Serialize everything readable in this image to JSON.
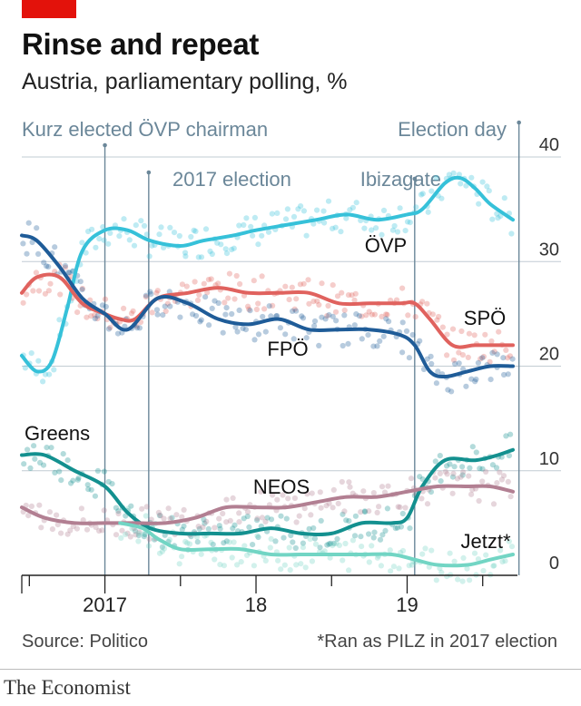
{
  "header": {
    "title": "Rinse and repeat",
    "subtitle": "Austria, parliamentary polling, %"
  },
  "footer": {
    "source": "Source: Politico",
    "footnote": "*Ran as PILZ in 2017 election",
    "brand": "The Economist"
  },
  "colors": {
    "accent": "#e3120b",
    "OVP": "#36c1d9",
    "SPO": "#e0625e",
    "FPO": "#1f5c98",
    "Greens": "#13908f",
    "NEOS": "#b27f92",
    "Jetzt": "#72d5c4",
    "event_line": "#6b8799"
  },
  "chart_data": {
    "type": "line",
    "x_axis": {
      "range": [
        2016.45,
        2019.73
      ],
      "tick_labels": [
        {
          "label": "2017",
          "x": 2017.0
        },
        {
          "label": "18",
          "x": 2018.0
        },
        {
          "label": "19",
          "x": 2019.0
        }
      ],
      "year_ticks": [
        2016.5,
        2017.0,
        2017.5,
        2018.0,
        2018.5,
        2019.0,
        2019.5
      ]
    },
    "y_axis": {
      "range": [
        0,
        40
      ],
      "ticks": [
        0,
        10,
        20,
        30,
        40
      ],
      "grid": true,
      "side": "right"
    },
    "events": [
      {
        "label": "Kurz elected ÖVP chairman",
        "x": 2017.0
      },
      {
        "label": "2017 election",
        "x": 2017.29
      },
      {
        "label": "Ibizagate",
        "x": 2019.05
      },
      {
        "label": "Election day",
        "x": 2019.74
      }
    ],
    "series": [
      {
        "name": "ÖVP",
        "color": "#36c1d9",
        "x": [
          2016.45,
          2016.55,
          2016.65,
          2016.75,
          2016.85,
          2017.0,
          2017.15,
          2017.3,
          2017.5,
          2017.65,
          2017.85,
          2018.0,
          2018.2,
          2018.4,
          2018.6,
          2018.8,
          2019.0,
          2019.1,
          2019.25,
          2019.35,
          2019.45,
          2019.55,
          2019.7
        ],
        "y": [
          21.0,
          19.5,
          20.5,
          25.5,
          31.0,
          33.0,
          33.0,
          32.0,
          31.5,
          32.0,
          32.5,
          33.0,
          33.5,
          34.0,
          34.5,
          34.0,
          34.5,
          35.0,
          37.5,
          38.0,
          37.0,
          35.5,
          34.0
        ]
      },
      {
        "name": "SPÖ",
        "color": "#e0625e",
        "x": [
          2016.45,
          2016.55,
          2016.7,
          2016.85,
          2017.0,
          2017.1,
          2017.2,
          2017.35,
          2017.55,
          2017.75,
          2017.95,
          2018.15,
          2018.35,
          2018.55,
          2018.75,
          2018.95,
          2019.05,
          2019.15,
          2019.3,
          2019.45,
          2019.6,
          2019.7
        ],
        "y": [
          27.0,
          28.5,
          28.5,
          26.0,
          25.0,
          24.5,
          24.5,
          26.5,
          27.0,
          27.5,
          27.0,
          27.0,
          27.0,
          26.0,
          26.0,
          26.0,
          26.0,
          24.5,
          22.0,
          22.0,
          22.0,
          22.0
        ]
      },
      {
        "name": "FPÖ",
        "color": "#1f5c98",
        "x": [
          2016.45,
          2016.55,
          2016.7,
          2016.85,
          2017.0,
          2017.15,
          2017.35,
          2017.55,
          2017.75,
          2017.95,
          2018.15,
          2018.35,
          2018.55,
          2018.75,
          2018.95,
          2019.05,
          2019.15,
          2019.25,
          2019.4,
          2019.55,
          2019.7
        ],
        "y": [
          32.5,
          32.0,
          29.5,
          26.5,
          25.0,
          23.5,
          26.5,
          26.0,
          24.5,
          24.0,
          24.5,
          23.5,
          23.5,
          23.5,
          23.0,
          22.0,
          19.5,
          19.0,
          19.5,
          20.0,
          20.0
        ]
      },
      {
        "name": "Greens",
        "color": "#13908f",
        "x": [
          2016.45,
          2016.6,
          2016.8,
          2017.0,
          2017.15,
          2017.3,
          2017.5,
          2017.7,
          2017.9,
          2018.1,
          2018.3,
          2018.5,
          2018.7,
          2018.9,
          2019.0,
          2019.1,
          2019.25,
          2019.45,
          2019.6,
          2019.7
        ],
        "y": [
          11.5,
          11.5,
          10.0,
          8.5,
          6.0,
          4.5,
          4.0,
          4.0,
          4.0,
          4.5,
          4.0,
          4.0,
          5.0,
          5.0,
          5.5,
          8.5,
          11.0,
          11.0,
          11.5,
          12.0
        ]
      },
      {
        "name": "NEOS",
        "color": "#b27f92",
        "x": [
          2016.45,
          2016.6,
          2016.8,
          2017.0,
          2017.2,
          2017.4,
          2017.6,
          2017.8,
          2018.0,
          2018.2,
          2018.4,
          2018.6,
          2018.8,
          2019.0,
          2019.2,
          2019.4,
          2019.55,
          2019.7
        ],
        "y": [
          6.5,
          5.5,
          5.0,
          5.0,
          5.0,
          5.0,
          5.5,
          6.5,
          6.5,
          6.5,
          7.0,
          7.5,
          7.5,
          8.0,
          8.5,
          8.5,
          8.5,
          8.0
        ]
      },
      {
        "name": "Jetzt*",
        "color": "#72d5c4",
        "x": [
          2017.1,
          2017.25,
          2017.35,
          2017.5,
          2017.7,
          2017.9,
          2018.1,
          2018.3,
          2018.5,
          2018.7,
          2018.9,
          2019.05,
          2019.2,
          2019.4,
          2019.55,
          2019.7
        ],
        "y": [
          5.0,
          4.5,
          3.5,
          2.5,
          2.5,
          2.5,
          2.0,
          2.0,
          2.0,
          2.0,
          2.0,
          1.5,
          1.0,
          1.0,
          1.5,
          2.0
        ]
      }
    ]
  }
}
